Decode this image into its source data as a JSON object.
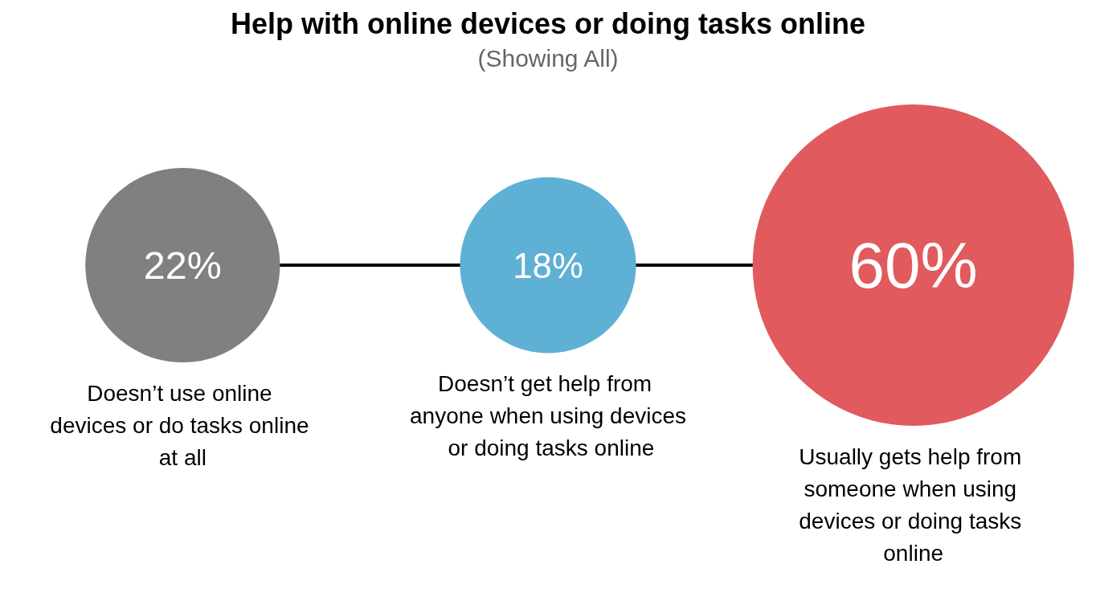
{
  "chart_data": {
    "type": "other",
    "title": "Help with online devices or doing tasks online",
    "subtitle": "(Showing All)",
    "categories": [
      "Doesn’t use online devices or do tasks online at all",
      "Doesn’t get help from anyone when using devices or doing tasks online",
      "Usually gets help from someone when using devices or doing tasks online"
    ],
    "values": [
      22,
      18,
      60
    ],
    "colors": [
      "#808080",
      "#5eb0d5",
      "#e05a5e"
    ],
    "value_labels": [
      "22%",
      "18%",
      "60%"
    ]
  }
}
